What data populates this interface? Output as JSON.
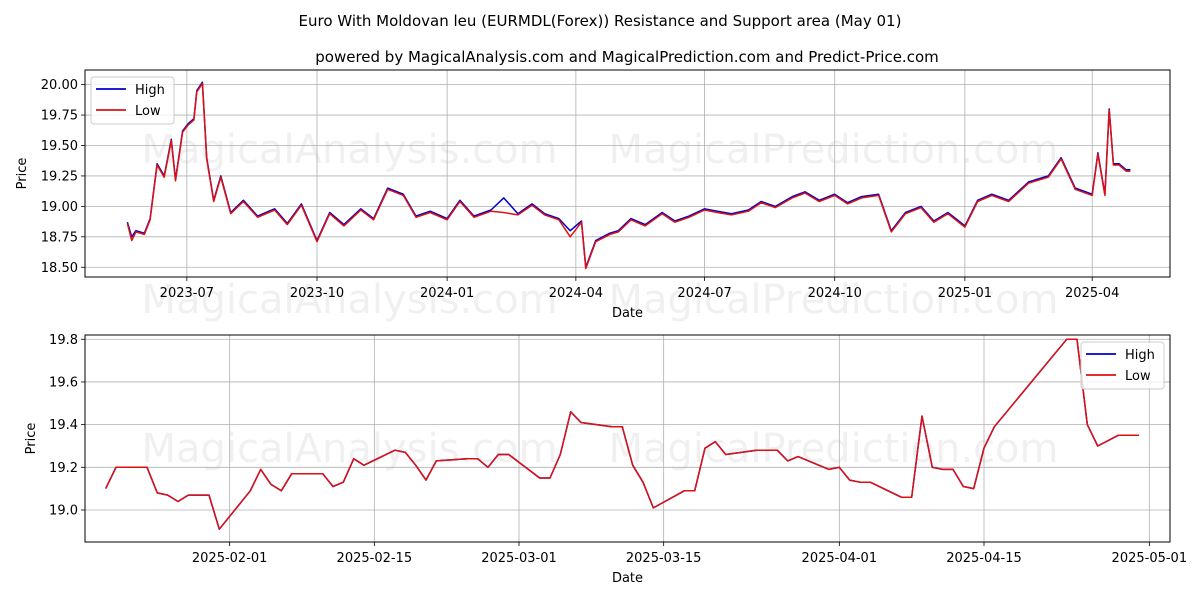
{
  "title": "Euro With Moldovan leu (EURMDL(Forex)) Resistance and Support area (May 01)",
  "subtitle": "powered by MagicalAnalysis.com and MagicalPrediction.com and Predict-Price.com",
  "watermark": "MagicalAnalysis.com    MagicalPrediction.com",
  "colors": {
    "high": "#0000cc",
    "low": "#dd1111",
    "grid": "#b0b0b0"
  },
  "chart_data": [
    {
      "type": "line",
      "xlabel": "Date",
      "ylabel": "Price",
      "xlim": [
        "2023-04-20",
        "2025-05-26"
      ],
      "ylim": [
        18.42,
        20.12
      ],
      "legend": "top-left",
      "grid": true,
      "x_ticks": [
        "2023-07-01",
        "2023-10-01",
        "2024-01-01",
        "2024-04-01",
        "2024-07-01",
        "2024-10-01",
        "2025-01-01",
        "2025-04-01"
      ],
      "x_tick_labels": [
        "2023-07",
        "2023-10",
        "2024-01",
        "2024-04",
        "2024-07",
        "2024-10",
        "2025-01",
        "2025-04"
      ],
      "y_ticks": [
        18.5,
        18.75,
        19.0,
        19.25,
        19.5,
        19.75,
        20.0
      ],
      "y_tick_labels": [
        "18.50",
        "18.75",
        "19.00",
        "19.25",
        "19.50",
        "19.75",
        "20.00"
      ],
      "series": [
        {
          "name": "High",
          "x": [
            "2023-05-20",
            "2023-05-23",
            "2023-05-26",
            "2023-06-01",
            "2023-06-05",
            "2023-06-10",
            "2023-06-15",
            "2023-06-20",
            "2023-06-23",
            "2023-06-28",
            "2023-07-02",
            "2023-07-06",
            "2023-07-08",
            "2023-07-12",
            "2023-07-15",
            "2023-07-20",
            "2023-07-25",
            "2023-08-01",
            "2023-08-10",
            "2023-08-20",
            "2023-09-01",
            "2023-09-10",
            "2023-09-20",
            "2023-10-01",
            "2023-10-10",
            "2023-10-20",
            "2023-11-01",
            "2023-11-10",
            "2023-11-20",
            "2023-12-01",
            "2023-12-10",
            "2023-12-20",
            "2024-01-01",
            "2024-01-10",
            "2024-01-20",
            "2024-02-01",
            "2024-02-10",
            "2024-02-20",
            "2024-03-01",
            "2024-03-10",
            "2024-03-20",
            "2024-03-28",
            "2024-04-05",
            "2024-04-08",
            "2024-04-15",
            "2024-04-25",
            "2024-05-01",
            "2024-05-10",
            "2024-05-20",
            "2024-06-01",
            "2024-06-10",
            "2024-06-20",
            "2024-07-01",
            "2024-07-10",
            "2024-07-20",
            "2024-08-01",
            "2024-08-10",
            "2024-08-20",
            "2024-09-01",
            "2024-09-10",
            "2024-09-20",
            "2024-10-01",
            "2024-10-10",
            "2024-10-20",
            "2024-11-01",
            "2024-11-10",
            "2024-11-20",
            "2024-12-01",
            "2024-12-10",
            "2024-12-20",
            "2025-01-01",
            "2025-01-10",
            "2025-01-20",
            "2025-02-01",
            "2025-02-15",
            "2025-03-01",
            "2025-03-10",
            "2025-03-20",
            "2025-04-01",
            "2025-04-05",
            "2025-04-10",
            "2025-04-13",
            "2025-04-16",
            "2025-04-20",
            "2025-04-25",
            "2025-04-28"
          ],
          "values": [
            18.87,
            18.75,
            18.8,
            18.78,
            18.9,
            19.35,
            19.25,
            19.55,
            19.22,
            19.62,
            19.68,
            19.72,
            19.95,
            20.02,
            19.4,
            19.05,
            19.25,
            18.95,
            19.05,
            18.92,
            18.98,
            18.86,
            19.02,
            18.72,
            18.95,
            18.85,
            18.98,
            18.9,
            19.15,
            19.1,
            18.92,
            18.96,
            18.9,
            19.05,
            18.92,
            18.97,
            19.07,
            18.94,
            19.02,
            18.94,
            18.9,
            18.8,
            18.88,
            18.5,
            18.72,
            18.78,
            18.8,
            18.9,
            18.85,
            18.95,
            18.88,
            18.92,
            18.98,
            18.96,
            18.94,
            18.97,
            19.04,
            19.0,
            19.08,
            19.12,
            19.05,
            19.1,
            19.03,
            19.08,
            19.1,
            18.8,
            18.95,
            19.0,
            18.88,
            18.95,
            18.84,
            19.05,
            19.1,
            19.05,
            19.2,
            19.25,
            19.4,
            19.15,
            19.1,
            19.44,
            19.1,
            19.8,
            19.35,
            19.35,
            19.3,
            19.3
          ]
        },
        {
          "name": "Low",
          "x": [
            "2023-05-20",
            "2023-05-23",
            "2023-05-26",
            "2023-06-01",
            "2023-06-05",
            "2023-06-10",
            "2023-06-15",
            "2023-06-20",
            "2023-06-23",
            "2023-06-28",
            "2023-07-02",
            "2023-07-06",
            "2023-07-08",
            "2023-07-12",
            "2023-07-15",
            "2023-07-20",
            "2023-07-25",
            "2023-08-01",
            "2023-08-10",
            "2023-08-20",
            "2023-09-01",
            "2023-09-10",
            "2023-09-20",
            "2023-10-01",
            "2023-10-10",
            "2023-10-20",
            "2023-11-01",
            "2023-11-10",
            "2023-11-20",
            "2023-12-01",
            "2023-12-10",
            "2023-12-20",
            "2024-01-01",
            "2024-01-10",
            "2024-01-20",
            "2024-02-01",
            "2024-02-10",
            "2024-02-20",
            "2024-03-01",
            "2024-03-10",
            "2024-03-20",
            "2024-03-28",
            "2024-04-05",
            "2024-04-08",
            "2024-04-15",
            "2024-04-25",
            "2024-05-01",
            "2024-05-10",
            "2024-05-20",
            "2024-06-01",
            "2024-06-10",
            "2024-06-20",
            "2024-07-01",
            "2024-07-10",
            "2024-07-20",
            "2024-08-01",
            "2024-08-10",
            "2024-08-20",
            "2024-09-01",
            "2024-09-10",
            "2024-09-20",
            "2024-10-01",
            "2024-10-10",
            "2024-10-20",
            "2024-11-01",
            "2024-11-10",
            "2024-11-20",
            "2024-12-01",
            "2024-12-10",
            "2024-12-20",
            "2025-01-01",
            "2025-01-10",
            "2025-01-20",
            "2025-02-01",
            "2025-02-15",
            "2025-03-01",
            "2025-03-10",
            "2025-03-20",
            "2025-04-01",
            "2025-04-05",
            "2025-04-10",
            "2025-04-13",
            "2025-04-16",
            "2025-04-20",
            "2025-04-25",
            "2025-04-28"
          ],
          "values": [
            18.86,
            18.72,
            18.79,
            18.77,
            18.89,
            19.34,
            19.24,
            19.54,
            19.21,
            19.61,
            19.67,
            19.71,
            19.94,
            20.01,
            19.39,
            19.04,
            19.24,
            18.94,
            19.04,
            18.91,
            18.97,
            18.85,
            19.01,
            18.71,
            18.94,
            18.84,
            18.97,
            18.89,
            19.14,
            19.09,
            18.91,
            18.95,
            18.89,
            19.04,
            18.91,
            18.96,
            18.95,
            18.93,
            19.01,
            18.93,
            18.89,
            18.75,
            18.87,
            18.49,
            18.71,
            18.77,
            18.79,
            18.89,
            18.84,
            18.94,
            18.87,
            18.91,
            18.97,
            18.95,
            18.93,
            18.96,
            19.03,
            18.99,
            19.07,
            19.11,
            19.04,
            19.09,
            19.02,
            19.07,
            19.09,
            18.79,
            18.94,
            18.99,
            18.87,
            18.94,
            18.83,
            19.04,
            19.09,
            19.04,
            19.19,
            19.24,
            19.39,
            19.14,
            19.09,
            19.43,
            19.09,
            19.79,
            19.34,
            19.34,
            19.29,
            19.29
          ]
        }
      ]
    },
    {
      "type": "line",
      "xlabel": "Date",
      "ylabel": "Price",
      "xlim": [
        "2025-01-18",
        "2025-05-03"
      ],
      "ylim": [
        18.85,
        19.82
      ],
      "legend": "top-right",
      "grid": true,
      "x_ticks": [
        "2025-02-01",
        "2025-02-15",
        "2025-03-01",
        "2025-03-15",
        "2025-04-01",
        "2025-04-15",
        "2025-05-01"
      ],
      "x_tick_labels": [
        "2025-02-01",
        "2025-02-15",
        "2025-03-01",
        "2025-03-15",
        "2025-04-01",
        "2025-04-15",
        "2025-05-01"
      ],
      "y_ticks": [
        19.0,
        19.2,
        19.4,
        19.6,
        19.8
      ],
      "y_tick_labels": [
        "19.0",
        "19.2",
        "19.4",
        "19.6",
        "19.8"
      ],
      "series": [
        {
          "name": "High",
          "x": [
            "2025-01-20",
            "2025-01-21",
            "2025-01-24",
            "2025-01-25",
            "2025-01-26",
            "2025-01-27",
            "2025-01-28",
            "2025-01-30",
            "2025-01-31",
            "2025-02-03",
            "2025-02-04",
            "2025-02-05",
            "2025-02-06",
            "2025-02-07",
            "2025-02-08",
            "2025-02-10",
            "2025-02-11",
            "2025-02-12",
            "2025-02-13",
            "2025-02-14",
            "2025-02-17",
            "2025-02-18",
            "2025-02-19",
            "2025-02-20",
            "2025-02-21",
            "2025-02-24",
            "2025-02-25",
            "2025-02-26",
            "2025-02-27",
            "2025-02-28",
            "2025-03-03",
            "2025-03-04",
            "2025-03-05",
            "2025-03-06",
            "2025-03-07",
            "2025-03-10",
            "2025-03-11",
            "2025-03-12",
            "2025-03-13",
            "2025-03-14",
            "2025-03-17",
            "2025-03-18",
            "2025-03-19",
            "2025-03-20",
            "2025-03-21",
            "2025-03-24",
            "2025-03-25",
            "2025-03-26",
            "2025-03-27",
            "2025-03-28",
            "2025-03-31",
            "2025-04-01",
            "2025-04-02",
            "2025-04-03",
            "2025-04-04",
            "2025-04-07",
            "2025-04-08",
            "2025-04-09",
            "2025-04-10",
            "2025-04-11",
            "2025-04-12",
            "2025-04-13",
            "2025-04-14",
            "2025-04-15",
            "2025-04-16",
            "2025-04-23",
            "2025-04-24",
            "2025-04-25",
            "2025-04-26",
            "2025-04-28",
            "2025-04-29",
            "2025-04-30"
          ],
          "values": [
            19.1,
            19.2,
            19.2,
            19.08,
            19.07,
            19.04,
            19.07,
            19.07,
            18.91,
            19.09,
            19.19,
            19.12,
            19.09,
            19.17,
            19.17,
            19.17,
            19.11,
            19.13,
            19.24,
            19.21,
            19.28,
            19.27,
            19.21,
            19.14,
            19.23,
            19.24,
            19.24,
            19.2,
            19.26,
            19.26,
            19.15,
            19.15,
            19.26,
            19.46,
            19.41,
            19.39,
            19.39,
            19.21,
            19.13,
            19.01,
            19.09,
            19.09,
            19.29,
            19.32,
            19.26,
            19.28,
            19.28,
            19.28,
            19.23,
            19.25,
            19.19,
            19.2,
            19.14,
            19.13,
            19.13,
            19.06,
            19.06,
            19.44,
            19.2,
            19.19,
            19.19,
            19.11,
            19.1,
            19.29,
            19.39,
            19.8,
            19.8,
            19.4,
            19.3,
            19.35,
            19.35,
            19.35
          ]
        },
        {
          "name": "Low",
          "x": [
            "2025-01-20",
            "2025-01-21",
            "2025-01-24",
            "2025-01-25",
            "2025-01-26",
            "2025-01-27",
            "2025-01-28",
            "2025-01-30",
            "2025-01-31",
            "2025-02-03",
            "2025-02-04",
            "2025-02-05",
            "2025-02-06",
            "2025-02-07",
            "2025-02-08",
            "2025-02-10",
            "2025-02-11",
            "2025-02-12",
            "2025-02-13",
            "2025-02-14",
            "2025-02-17",
            "2025-02-18",
            "2025-02-19",
            "2025-02-20",
            "2025-02-21",
            "2025-02-24",
            "2025-02-25",
            "2025-02-26",
            "2025-02-27",
            "2025-02-28",
            "2025-03-03",
            "2025-03-04",
            "2025-03-05",
            "2025-03-06",
            "2025-03-07",
            "2025-03-10",
            "2025-03-11",
            "2025-03-12",
            "2025-03-13",
            "2025-03-14",
            "2025-03-17",
            "2025-03-18",
            "2025-03-19",
            "2025-03-20",
            "2025-03-21",
            "2025-03-24",
            "2025-03-25",
            "2025-03-26",
            "2025-03-27",
            "2025-03-28",
            "2025-03-31",
            "2025-04-01",
            "2025-04-02",
            "2025-04-03",
            "2025-04-04",
            "2025-04-07",
            "2025-04-08",
            "2025-04-09",
            "2025-04-10",
            "2025-04-11",
            "2025-04-12",
            "2025-04-13",
            "2025-04-14",
            "2025-04-15",
            "2025-04-16",
            "2025-04-23",
            "2025-04-24",
            "2025-04-25",
            "2025-04-26",
            "2025-04-28",
            "2025-04-29",
            "2025-04-30"
          ],
          "values": [
            19.1,
            19.2,
            19.2,
            19.08,
            19.07,
            19.04,
            19.07,
            19.07,
            18.91,
            19.09,
            19.19,
            19.12,
            19.09,
            19.17,
            19.17,
            19.17,
            19.11,
            19.13,
            19.24,
            19.21,
            19.28,
            19.27,
            19.21,
            19.14,
            19.23,
            19.24,
            19.24,
            19.2,
            19.26,
            19.26,
            19.15,
            19.15,
            19.26,
            19.46,
            19.41,
            19.39,
            19.39,
            19.21,
            19.13,
            19.01,
            19.09,
            19.09,
            19.29,
            19.32,
            19.26,
            19.28,
            19.28,
            19.28,
            19.23,
            19.25,
            19.19,
            19.2,
            19.14,
            19.13,
            19.13,
            19.06,
            19.06,
            19.44,
            19.2,
            19.19,
            19.19,
            19.11,
            19.1,
            19.29,
            19.39,
            19.8,
            19.8,
            19.4,
            19.3,
            19.35,
            19.35,
            19.35
          ]
        }
      ]
    }
  ]
}
